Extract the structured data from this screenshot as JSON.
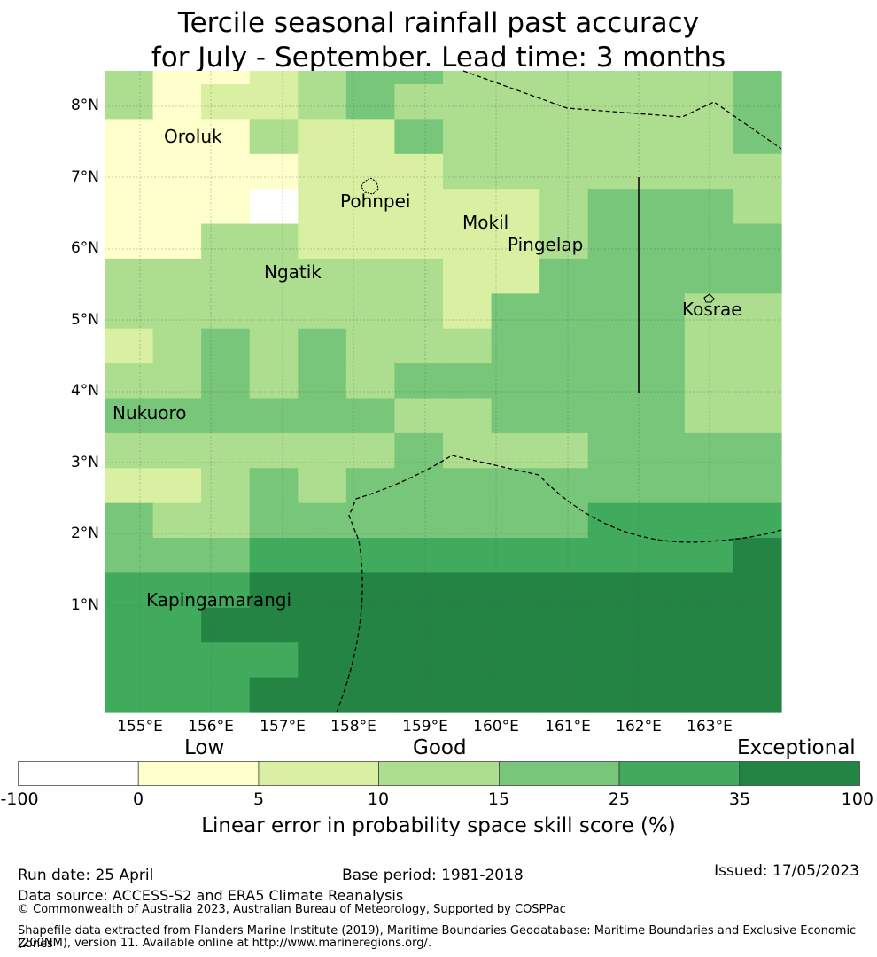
{
  "title": {
    "line1": "Tercile seasonal rainfall past accuracy",
    "line2": "for July - September. Lead time: 3 months"
  },
  "map": {
    "lat_labels": [
      "8°N",
      "7°N",
      "6°N",
      "5°N",
      "4°N",
      "3°N",
      "2°N",
      "1°N"
    ],
    "lon_labels": [
      "155°E",
      "156°E",
      "157°E",
      "158°E",
      "159°E",
      "160°E",
      "161°E",
      "162°E",
      "163°E"
    ],
    "places": [
      "Oroluk",
      "Pohnpei",
      "Mokil",
      "Pingelap",
      "Ngatik",
      "Kosrae",
      "Nukuoro",
      "Kapingamarangi"
    ],
    "grid_levels": [
      [
        3,
        1,
        1,
        2,
        3,
        4,
        4,
        3,
        3,
        3,
        3,
        3,
        3,
        4
      ],
      [
        3,
        1,
        2,
        2,
        3,
        4,
        3,
        3,
        3,
        3,
        3,
        3,
        3,
        4
      ],
      [
        1,
        1,
        1,
        3,
        2,
        2,
        4,
        3,
        3,
        3,
        3,
        3,
        3,
        4
      ],
      [
        1,
        1,
        1,
        1,
        2,
        2,
        2,
        3,
        3,
        3,
        3,
        3,
        3,
        3
      ],
      [
        1,
        1,
        1,
        0,
        2,
        2,
        2,
        2,
        2,
        3,
        4,
        4,
        4,
        3
      ],
      [
        1,
        1,
        3,
        3,
        2,
        2,
        2,
        2,
        2,
        3,
        4,
        4,
        4,
        4
      ],
      [
        3,
        3,
        3,
        3,
        3,
        3,
        3,
        2,
        2,
        4,
        4,
        4,
        4,
        4
      ],
      [
        3,
        3,
        3,
        3,
        3,
        3,
        3,
        2,
        4,
        4,
        4,
        4,
        3,
        3
      ],
      [
        2,
        3,
        4,
        3,
        4,
        3,
        3,
        3,
        4,
        4,
        4,
        4,
        3,
        3
      ],
      [
        3,
        3,
        4,
        3,
        4,
        3,
        4,
        4,
        4,
        4,
        4,
        4,
        3,
        3
      ],
      [
        4,
        4,
        4,
        4,
        4,
        4,
        3,
        3,
        4,
        4,
        4,
        4,
        3,
        3
      ],
      [
        3,
        3,
        3,
        3,
        3,
        3,
        4,
        3,
        3,
        3,
        4,
        4,
        4,
        4
      ],
      [
        2,
        2,
        3,
        4,
        3,
        4,
        4,
        4,
        4,
        4,
        4,
        4,
        4,
        4
      ],
      [
        4,
        3,
        3,
        4,
        4,
        4,
        4,
        4,
        4,
        4,
        5,
        5,
        5,
        5
      ],
      [
        4,
        4,
        4,
        5,
        5,
        5,
        5,
        5,
        5,
        5,
        5,
        5,
        5,
        6
      ],
      [
        5,
        5,
        5,
        6,
        6,
        6,
        6,
        6,
        6,
        6,
        6,
        6,
        6,
        6
      ],
      [
        5,
        5,
        6,
        6,
        6,
        6,
        6,
        6,
        6,
        6,
        6,
        6,
        6,
        6
      ],
      [
        5,
        5,
        5,
        5,
        6,
        6,
        6,
        6,
        6,
        6,
        6,
        6,
        6,
        6
      ],
      [
        5,
        5,
        5,
        6,
        6,
        6,
        6,
        6,
        6,
        6,
        6,
        6,
        6,
        6
      ]
    ]
  },
  "colorbar": {
    "categories": [
      "Low",
      "Good",
      "Exceptional"
    ],
    "ticks": [
      "-100",
      "0",
      "5",
      "10",
      "15",
      "25",
      "35",
      "100"
    ],
    "colors": [
      "#ffffff",
      "#ffffcc",
      "#d9f0a3",
      "#addd8e",
      "#78c679",
      "#41ab5d",
      "#238443"
    ],
    "title": "Linear error in probability space skill score (%)"
  },
  "footer": {
    "run_date": "Run date: 25 April",
    "base_period": "Base period: 1981-2018",
    "issued": "Issued: 17/05/2023",
    "data_source": "Data source: ACCESS-S2 and ERA5 Climate Reanalysis",
    "copyright": "© Commonwealth of Australia 2023, Australian Bureau of Meteorology, Supported by COSPPac",
    "shapefile_line1": "Shapefile data extracted from Flanders Marine Institute (2019), Maritime Boundaries Geodatabase: Maritime Boundaries and Exclusive Economic Zones",
    "shapefile_line2": "(200NM), version 11. Available online at http://www.marineregions.org/."
  }
}
